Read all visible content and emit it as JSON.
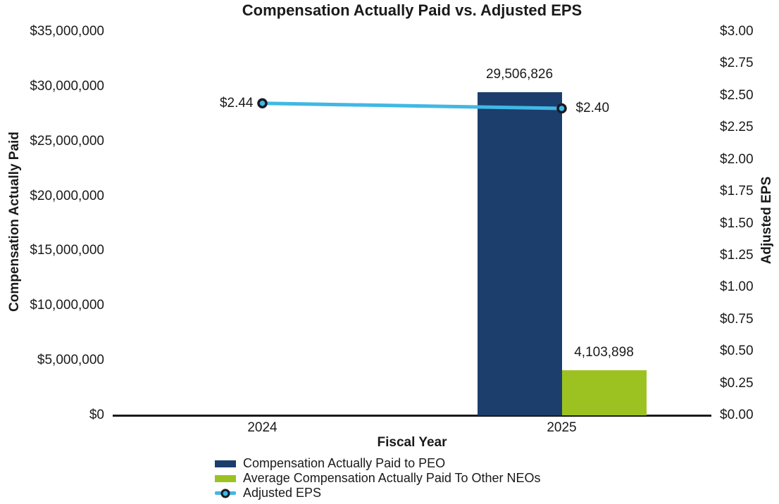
{
  "chart_data": {
    "type": "bar",
    "subtype": "combo-bar-line-dual-axis",
    "title": "Compensation Actually Paid vs. Adjusted EPS",
    "xlabel": "Fiscal Year",
    "categories": [
      "2024",
      "2025"
    ],
    "grid": false,
    "legend_position": "bottom-left",
    "axis_line_color": "#1a1a1a",
    "text_color": "#1a1a1a",
    "left_axis": {
      "label": "Compensation Actually Paid",
      "min": 0,
      "max": 35000000,
      "tick_interval": 5000000,
      "ticks": [
        "$0",
        "$5,000,000",
        "$10,000,000",
        "$15,000,000",
        "$20,000,000",
        "$25,000,000",
        "$30,000,000",
        "$35,000,000"
      ]
    },
    "right_axis": {
      "label": "Adjusted EPS",
      "min": 0,
      "max": 3,
      "tick_interval": 0.25,
      "ticks": [
        "$0.00",
        "$0.25",
        "$0.50",
        "$0.75",
        "$1.00",
        "$1.25",
        "$1.50",
        "$1.75",
        "$2.00",
        "$2.25",
        "$2.50",
        "$2.75",
        "$3.00"
      ]
    },
    "series": [
      {
        "id": "peo",
        "name": "Compensation Actually Paid to PEO",
        "kind": "bar",
        "axis": "left",
        "color": "#1B3E6C",
        "values": [
          null,
          29506826
        ],
        "data_labels": [
          "",
          "29,506,826"
        ]
      },
      {
        "id": "neo",
        "name": "Average Compensation Actually Paid To Other NEOs",
        "kind": "bar",
        "axis": "left",
        "color": "#9CC222",
        "values": [
          null,
          4103898
        ],
        "data_labels": [
          "",
          "4,103,898"
        ]
      },
      {
        "id": "eps",
        "name": "Adjusted EPS",
        "kind": "line",
        "axis": "right",
        "color": "#41B8E4",
        "marker": {
          "fill": "#41B8E4",
          "ring": "#1A1A24"
        },
        "values": [
          2.44,
          2.4
        ],
        "data_labels": [
          "$2.44",
          "$2.40"
        ]
      }
    ]
  }
}
